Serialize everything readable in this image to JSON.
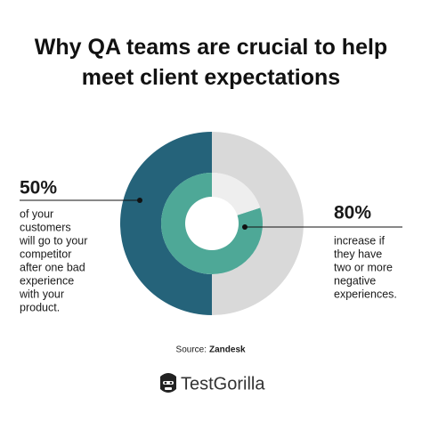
{
  "chart_data": {
    "type": "donut",
    "title": "Why QA teams are crucial to help meet client expectations",
    "series": [
      {
        "values": [
          50,
          50
        ],
        "value_labels": [
          "50%",
          null
        ],
        "colors": [
          "#25637a",
          "#d9d9d9"
        ],
        "note_lines": [
          "of your",
          "customers",
          "will go to your",
          "competitor",
          "after one bad",
          "experience",
          "with your",
          "product."
        ]
      },
      {
        "values": [
          80,
          20
        ],
        "value_labels": [
          "80%",
          null
        ],
        "colors": [
          "#4ea897",
          "#eeeeee"
        ],
        "note_lines": [
          "increase if",
          "they have",
          "two or more",
          "negative",
          "experiences."
        ]
      }
    ],
    "source_label": "Source:",
    "source": "Zandesk",
    "brand": "TestGorilla"
  }
}
